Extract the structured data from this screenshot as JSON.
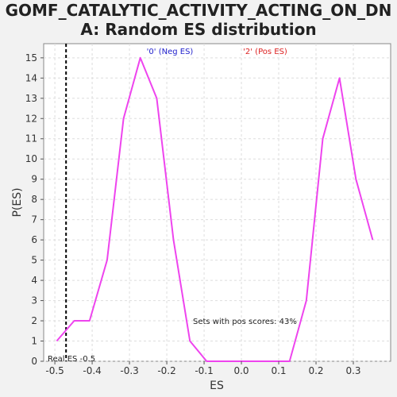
{
  "chart_data": {
    "type": "line",
    "title": [
      "GOMF_CATALYTIC_ACTIVITY_ACTING_ON_DN",
      "A: Random ES distribution"
    ],
    "xlabel": "ES",
    "ylabel": "P(ES)",
    "xlim": [
      -0.53,
      0.4
    ],
    "ylim": [
      0,
      15.7
    ],
    "xticks": [
      "-0.5",
      "-0.4",
      "-0.3",
      "-0.2",
      "-0.1",
      "0.0",
      "0.1",
      "0.2",
      "0.3"
    ],
    "yticks": [
      "0",
      "1",
      "2",
      "3",
      "4",
      "5",
      "6",
      "7",
      "8",
      "9",
      "10",
      "11",
      "12",
      "13",
      "14",
      "15"
    ],
    "grid": true,
    "series": [
      {
        "color": "#ee44ee",
        "x": [
          -0.495,
          -0.448,
          -0.407,
          -0.36,
          -0.316,
          -0.271,
          -0.227,
          -0.182,
          -0.138,
          -0.093,
          -0.049,
          -0.004,
          0.04,
          0.085,
          0.129,
          0.174,
          0.218,
          0.263,
          0.307,
          0.352
        ],
        "y": [
          1,
          2,
          2,
          5,
          12,
          15,
          13,
          6,
          1,
          0,
          0,
          0,
          0,
          0,
          0,
          3,
          11,
          14,
          9,
          6
        ]
      }
    ],
    "real_es": {
      "value": -0.47,
      "label": "Real ES -0.5",
      "color": "#000000"
    },
    "legend": [
      {
        "label": "'0' (Neg ES)",
        "color": "#2222cc"
      },
      {
        "label": "'2' (Pos ES)",
        "color": "#dd2222"
      }
    ],
    "annotation": "Sets with pos scores: 43%"
  }
}
